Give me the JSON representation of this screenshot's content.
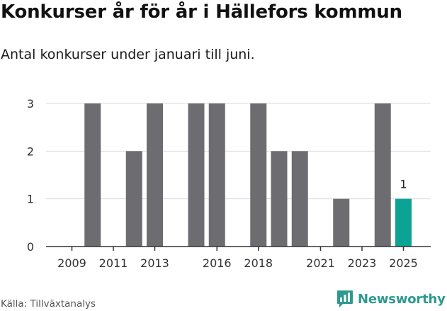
{
  "header": {
    "title": "Konkurser år för år i Hällefors kommun",
    "subtitle": "Antal konkurser under januari till juni."
  },
  "footer": {
    "source": "Källa: Tillväxtanalys",
    "brand": "Newsworthy"
  },
  "colors": {
    "bar": "#6d6c71",
    "highlight": "#0ba393",
    "grid": "#d9d9d9",
    "axis": "#333333",
    "brand": "#2c9a8f"
  },
  "chart_data": {
    "type": "bar",
    "categories": [
      "2009",
      "2010",
      "2011",
      "2012",
      "2013",
      "2014",
      "2015",
      "2016",
      "2017",
      "2018",
      "2019",
      "2020",
      "2021",
      "2022",
      "2023",
      "2024",
      "2025"
    ],
    "values": [
      0,
      3,
      0,
      2,
      3,
      0,
      3,
      3,
      0,
      3,
      2,
      2,
      0,
      1,
      0,
      3,
      1
    ],
    "highlight_category": "2025",
    "data_labels": [
      {
        "category": "2025",
        "text": "1"
      }
    ],
    "x_tick_labels": [
      "2009",
      "2011",
      "2013",
      "2016",
      "2018",
      "2021",
      "2023",
      "2025"
    ],
    "y_ticks": [
      0,
      1,
      2,
      3
    ],
    "ylim": [
      0,
      3
    ],
    "grid": true,
    "legend": "none",
    "xlabel": "",
    "ylabel": ""
  }
}
